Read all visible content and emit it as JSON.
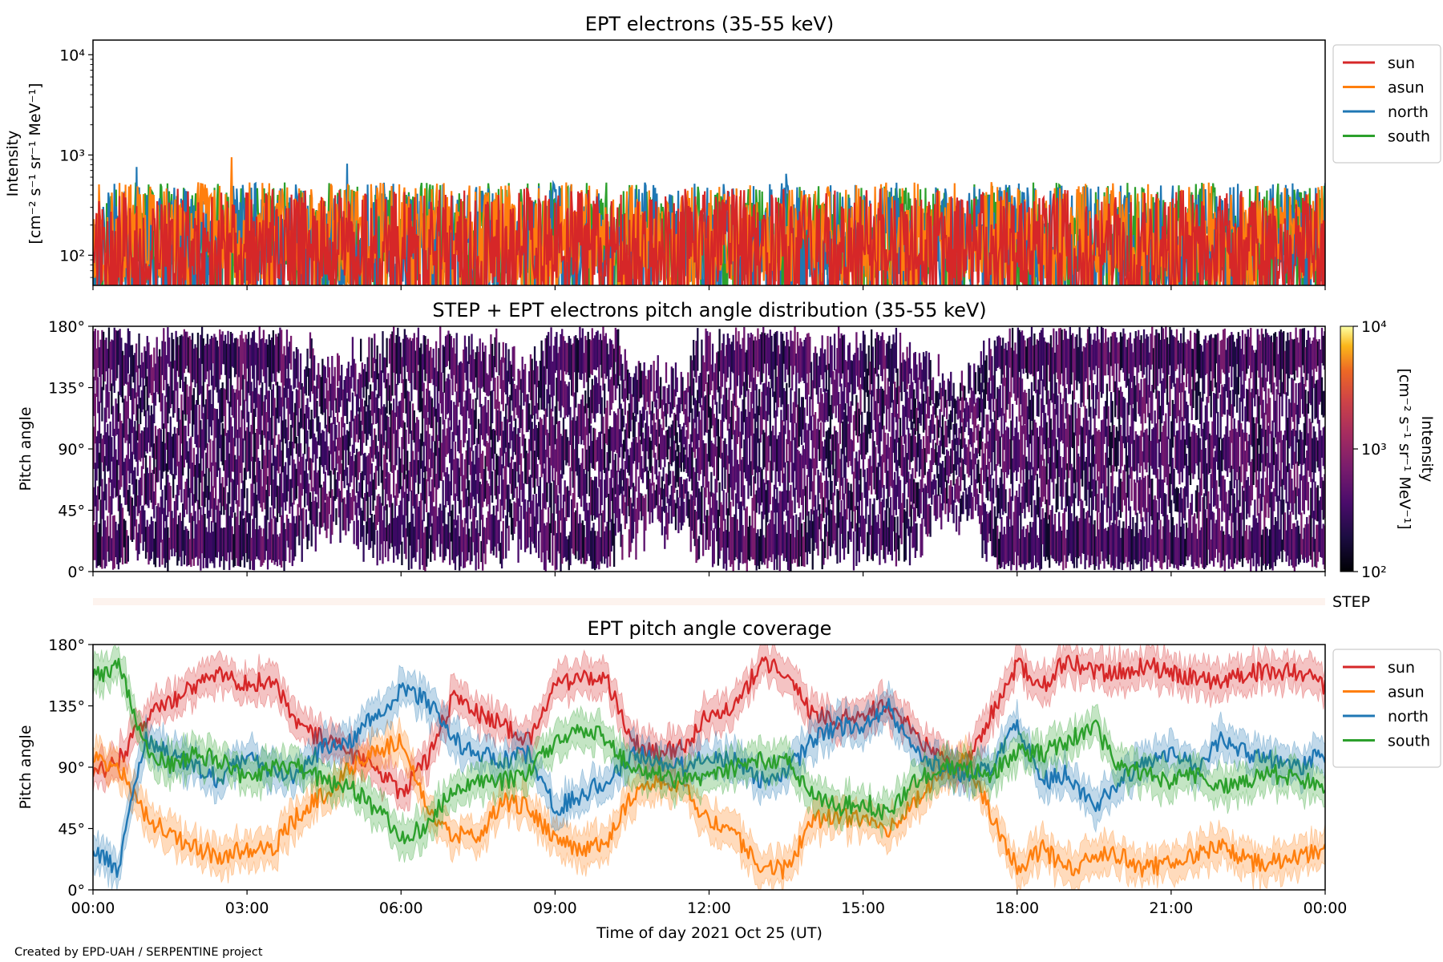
{
  "figure": {
    "credit": "Created by EPD-UAH / SERPENTINE project",
    "xlabel": "Time of day 2021 Oct 25 (UT)",
    "x_ticks": [
      "00:00",
      "03:00",
      "06:00",
      "09:00",
      "12:00",
      "15:00",
      "18:00",
      "21:00",
      "00:00"
    ],
    "x_range_hours": [
      0,
      24
    ]
  },
  "chart_data": [
    {
      "type": "line",
      "title": "EPT electrons (35-55 keV)",
      "ylabel_line1": "Intensity",
      "ylabel_line2": "[cm⁻² s⁻¹ sr⁻¹ MeV⁻¹]",
      "yscale": "log",
      "ylim": [
        50,
        14000
      ],
      "y_ticks": [
        {
          "value": 100,
          "label": "10²"
        },
        {
          "value": 1000,
          "label": "10³"
        },
        {
          "value": 10000,
          "label": "10⁴"
        }
      ],
      "legend_position": "outside-right",
      "series": [
        {
          "name": "sun",
          "color": "#d62728",
          "baseline": 130,
          "spread": 0.55
        },
        {
          "name": "asun",
          "color": "#ff7f0e",
          "baseline": 170,
          "spread": 0.5
        },
        {
          "name": "north",
          "color": "#1f77b4",
          "baseline": 150,
          "spread": 0.55
        },
        {
          "name": "south",
          "color": "#2ca02c",
          "baseline": 150,
          "spread": 0.55
        }
      ],
      "draw_order": [
        "south",
        "north",
        "asun",
        "sun"
      ],
      "notable_peaks": [
        {
          "series": "asun",
          "x": 2.7,
          "y": 950
        },
        {
          "series": "north",
          "x": 0.85,
          "y": 760
        },
        {
          "series": "north",
          "x": 4.95,
          "y": 820
        },
        {
          "series": "north",
          "x": 13.5,
          "y": 650
        }
      ]
    },
    {
      "type": "heatmap",
      "title": "STEP + EPT electrons pitch angle distribution (35-55 keV)",
      "ylabel": "Pitch angle",
      "ylim": [
        0,
        180
      ],
      "y_ticks": [
        "0°",
        "45°",
        "90°",
        "135°",
        "180°"
      ],
      "colorbar": {
        "label_line1": "Intensity",
        "label_line2": "[cm⁻² s⁻¹ sr⁻¹ MeV⁻¹]",
        "scale": "log",
        "range": [
          100,
          10000
        ],
        "ticks": [
          "10²",
          "10³",
          "10⁴"
        ],
        "colormap": "inferno"
      },
      "typical_intensity": 250
    },
    {
      "type": "heatmap",
      "label": "STEP",
      "color": "#fdf3ee"
    },
    {
      "type": "line",
      "title": "EPT pitch angle coverage",
      "ylabel": "Pitch angle",
      "ylim": [
        0,
        180
      ],
      "y_ticks": [
        "0°",
        "45°",
        "90°",
        "135°",
        "180°"
      ],
      "legend_position": "outside-right",
      "band_halfwidth_deg": 12,
      "series": [
        {
          "name": "sun",
          "color": "#d62728",
          "x": [
            0,
            0.5,
            1,
            1.5,
            2,
            2.5,
            3,
            3.5,
            4,
            4.5,
            5,
            5.5,
            6,
            6.5,
            7,
            7.5,
            8,
            8.5,
            9,
            9.5,
            10,
            10.5,
            11,
            11.5,
            12,
            12.5,
            13,
            13.5,
            14,
            14.5,
            15,
            15.5,
            16,
            16.5,
            17,
            17.5,
            18,
            18.5,
            19,
            19.5,
            20,
            20.5,
            21,
            21.5,
            22,
            22.5,
            23,
            23.5,
            24
          ],
          "y": [
            85,
            95,
            125,
            138,
            150,
            160,
            150,
            155,
            120,
            110,
            100,
            90,
            70,
            95,
            140,
            130,
            120,
            110,
            150,
            155,
            155,
            110,
            100,
            105,
            130,
            135,
            165,
            160,
            130,
            125,
            130,
            135,
            115,
            95,
            90,
            130,
            165,
            150,
            170,
            160,
            160,
            165,
            160,
            155,
            150,
            160,
            160,
            160,
            150
          ]
        },
        {
          "name": "asun",
          "color": "#ff7f0e",
          "x": [
            0,
            0.5,
            1,
            1.5,
            2,
            2.5,
            3,
            3.5,
            4,
            4.5,
            5,
            5.5,
            6,
            6.5,
            7,
            7.5,
            8,
            8.5,
            9,
            9.5,
            10,
            10.5,
            11,
            11.5,
            12,
            12.5,
            13,
            13.5,
            14,
            14.5,
            15,
            15.5,
            16,
            16.5,
            17,
            17.5,
            18,
            18.5,
            19,
            19.5,
            20,
            20.5,
            21,
            21.5,
            22,
            22.5,
            23,
            23.5,
            24
          ],
          "y": [
            95,
            90,
            55,
            40,
            30,
            25,
            30,
            30,
            55,
            70,
            90,
            100,
            110,
            60,
            40,
            40,
            65,
            60,
            35,
            30,
            35,
            70,
            80,
            75,
            50,
            40,
            15,
            15,
            50,
            55,
            50,
            45,
            65,
            85,
            95,
            55,
            15,
            30,
            15,
            25,
            25,
            15,
            20,
            25,
            35,
            20,
            20,
            25,
            28
          ]
        },
        {
          "name": "north",
          "color": "#1f77b4",
          "x": [
            0,
            0.5,
            1,
            1.5,
            2,
            2.5,
            3,
            3.5,
            4,
            4.5,
            5,
            5.5,
            6,
            6.5,
            7,
            7.5,
            8,
            8.5,
            9,
            9.5,
            10,
            10.5,
            11,
            11.5,
            12,
            12.5,
            13,
            13.5,
            14,
            14.5,
            15,
            15.5,
            16,
            16.5,
            17,
            17.5,
            18,
            18.5,
            19,
            19.5,
            20,
            20.5,
            21,
            21.5,
            22,
            22.5,
            23,
            23.5,
            24
          ],
          "y": [
            30,
            15,
            110,
            100,
            90,
            80,
            100,
            85,
            85,
            105,
            110,
            130,
            145,
            140,
            110,
            100,
            95,
            100,
            60,
            70,
            80,
            100,
            95,
            90,
            100,
            95,
            80,
            85,
            110,
            120,
            120,
            135,
            100,
            90,
            85,
            90,
            120,
            80,
            85,
            60,
            80,
            95,
            100,
            90,
            110,
            100,
            95,
            90,
            100
          ]
        },
        {
          "name": "south",
          "color": "#2ca02c",
          "x": [
            0,
            0.5,
            1,
            1.5,
            2,
            2.5,
            3,
            3.5,
            4,
            4.5,
            5,
            5.5,
            6,
            6.5,
            7,
            7.5,
            8,
            8.5,
            9,
            9.5,
            10,
            10.5,
            11,
            11.5,
            12,
            12.5,
            13,
            13.5,
            14,
            14.5,
            15,
            15.5,
            16,
            16.5,
            17,
            17.5,
            18,
            18.5,
            19,
            19.5,
            20,
            20.5,
            21,
            21.5,
            22,
            22.5,
            23,
            23.5,
            24
          ],
          "y": [
            155,
            165,
            105,
            90,
            100,
            95,
            80,
            90,
            90,
            80,
            75,
            60,
            40,
            45,
            75,
            80,
            80,
            85,
            110,
            120,
            110,
            90,
            85,
            80,
            80,
            90,
            95,
            95,
            70,
            60,
            65,
            55,
            80,
            90,
            90,
            85,
            100,
            100,
            110,
            120,
            90,
            85,
            80,
            85,
            75,
            80,
            85,
            80,
            78
          ]
        }
      ]
    }
  ]
}
